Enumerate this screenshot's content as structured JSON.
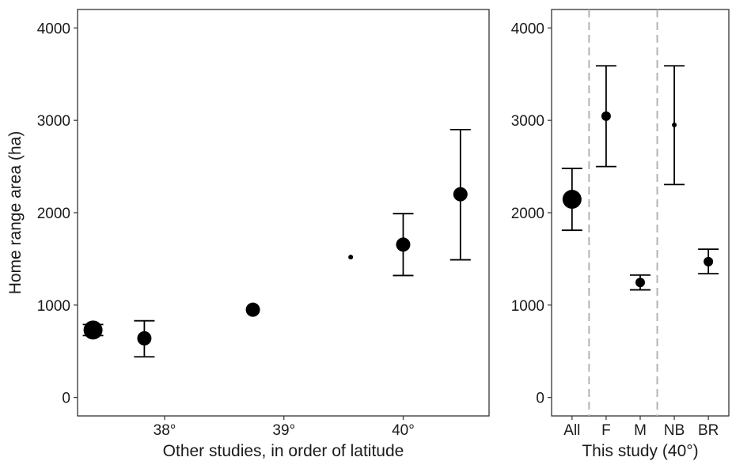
{
  "chart_data": [
    {
      "type": "scatter",
      "panel": "left",
      "xlabel": "Other studies, in order of latitude",
      "ylabel": "Home range area (ha)",
      "ylim": [
        -200,
        4200
      ],
      "xlim": [
        37.27,
        40.72
      ],
      "y_ticks": [
        0,
        1000,
        2000,
        3000,
        4000
      ],
      "y_tick_labels": [
        "0",
        "1000",
        "2000",
        "3000",
        "4000"
      ],
      "x_ticks": [
        38,
        39,
        40
      ],
      "x_tick_labels": [
        "38°",
        "39°",
        "40°"
      ],
      "grid": false,
      "points": [
        {
          "x": 37.4,
          "y": 730,
          "ymin": 670,
          "ymax": 790,
          "size": "large"
        },
        {
          "x": 37.83,
          "y": 640,
          "ymin": 440,
          "ymax": 830,
          "size": "medium"
        },
        {
          "x": 38.74,
          "y": 950,
          "size": "medium"
        },
        {
          "x": 39.56,
          "y": 1520,
          "size": "tiny"
        },
        {
          "x": 40.0,
          "y": 1655,
          "ymin": 1320,
          "ymax": 1990,
          "size": "medium"
        },
        {
          "x": 40.48,
          "y": 2200,
          "ymin": 1490,
          "ymax": 2900,
          "size": "medium"
        }
      ]
    },
    {
      "type": "scatter",
      "panel": "right",
      "xlabel": "This study (40°)",
      "ylabel": "",
      "ylim": [
        -200,
        4200
      ],
      "categories": [
        "All",
        "F",
        "M",
        "NB",
        "BR"
      ],
      "y_ticks": [
        0,
        1000,
        2000,
        3000,
        4000
      ],
      "y_tick_labels": [
        "0",
        "1000",
        "2000",
        "3000",
        "4000"
      ],
      "grid": false,
      "dashed_separators_after": [
        "All",
        "M"
      ],
      "points": [
        {
          "category": "All",
          "y": 2145,
          "ymin": 1810,
          "ymax": 2480,
          "size": "large"
        },
        {
          "category": "F",
          "y": 3045,
          "ymin": 2500,
          "ymax": 3590,
          "size": "small"
        },
        {
          "category": "M",
          "y": 1245,
          "ymin": 1165,
          "ymax": 1325,
          "size": "small"
        },
        {
          "category": "NB",
          "y": 2950,
          "ymin": 2305,
          "ymax": 3590,
          "size": "tiny"
        },
        {
          "category": "BR",
          "y": 1470,
          "ymin": 1340,
          "ymax": 1605,
          "size": "small"
        }
      ]
    }
  ],
  "colors": {
    "points": "#000000",
    "frame": "#333333",
    "separator": "#b3b3b3",
    "text": "#1a1a1a"
  }
}
